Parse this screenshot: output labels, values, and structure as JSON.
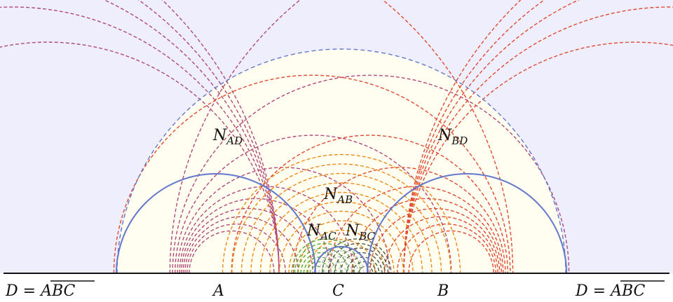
{
  "diagram": {
    "colors": {
      "outer_bg": "#eeeefc",
      "disk_fill": "#fffef0",
      "AD": "#b04a7a",
      "BD": "#e04a34",
      "AB": "#ee8a18",
      "AC": "#5aa83c",
      "BC": "#4e5a4e",
      "mid": "#c6c6dc",
      "circle": "#6478cc",
      "baseline": "#111111"
    },
    "region_labels": {
      "AD": {
        "base": "N",
        "sub": "AD"
      },
      "BD": {
        "base": "N",
        "sub": "BD"
      },
      "AB": {
        "base": "N",
        "sub": "AB"
      },
      "AC": {
        "base": "N",
        "sub": "AC"
      },
      "BC": {
        "base": "N",
        "sub": "BC"
      }
    },
    "point_labels": {
      "left": {
        "prefix": "D = ",
        "bar": "ABC"
      },
      "A": "A",
      "C": "C",
      "B": "B",
      "right": {
        "prefix": "D = ",
        "bar": "ABC"
      }
    }
  }
}
